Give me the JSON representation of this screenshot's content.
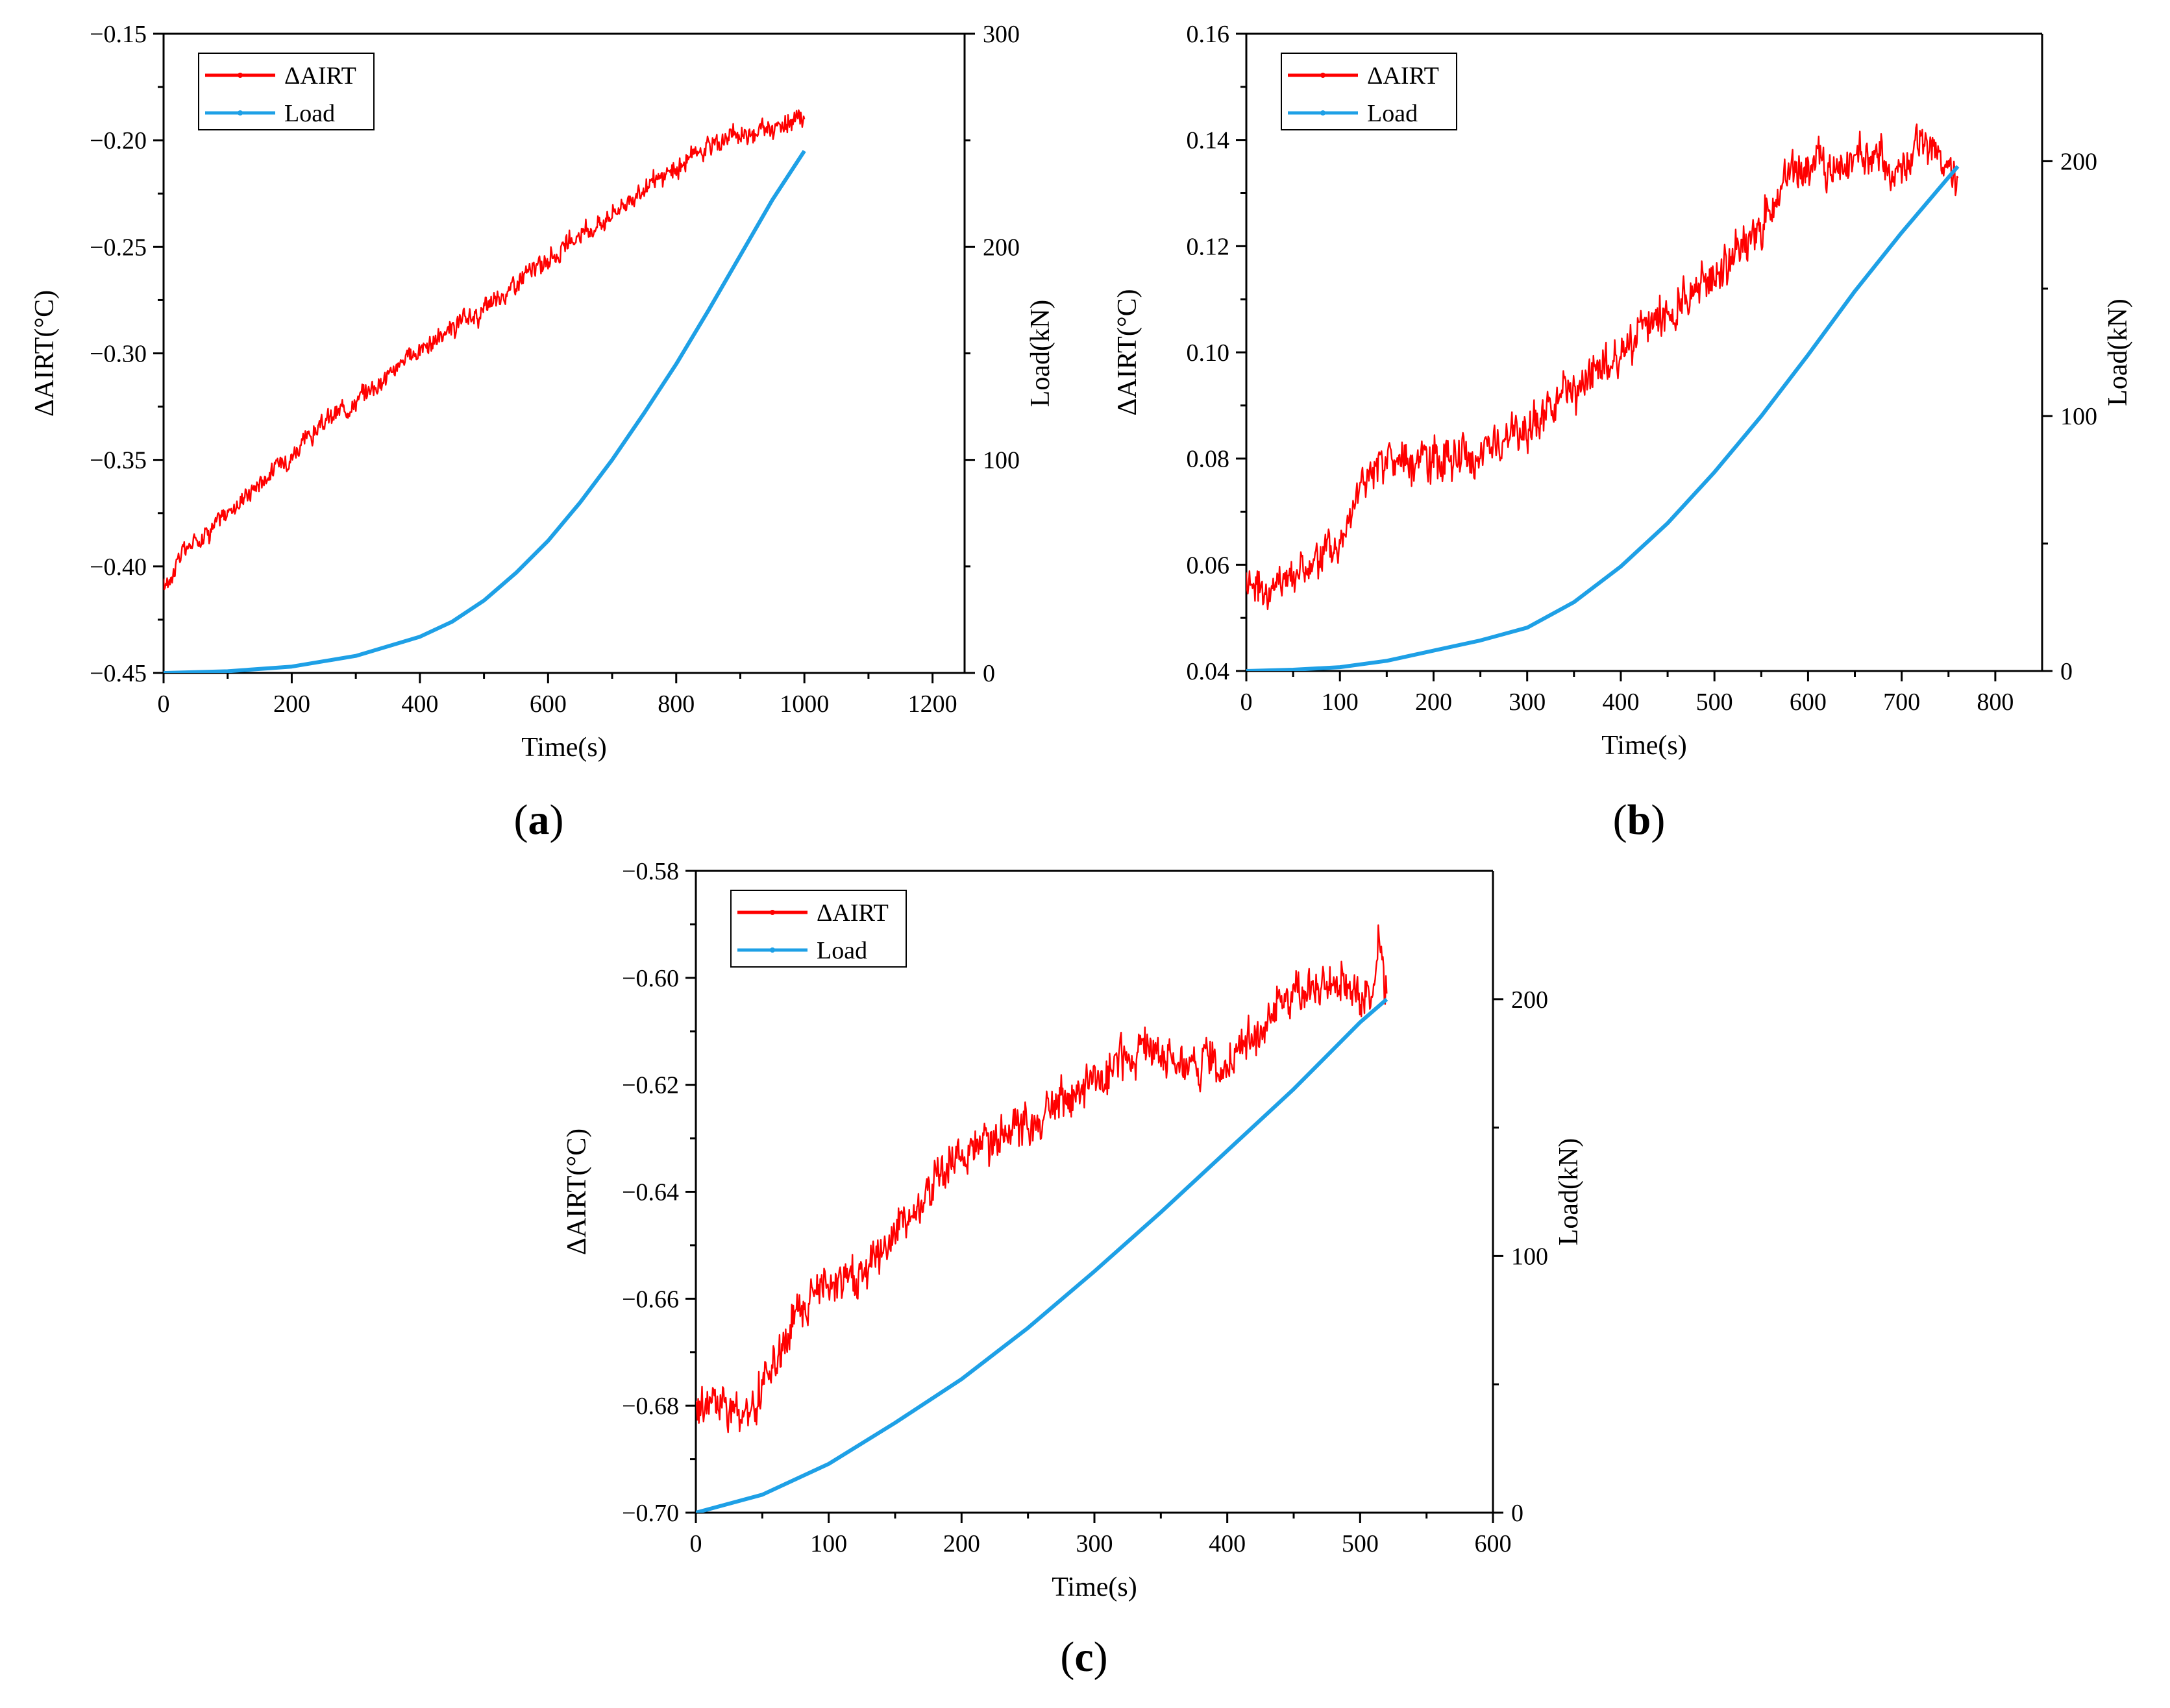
{
  "chart_data": [
    {
      "panel": "a",
      "type": "line",
      "xlabel": "Time(s)",
      "ylabel": "ΔAIRT(°C)",
      "y2label": "Load(kN)",
      "xlim": [
        0,
        1250
      ],
      "ylim": [
        -0.45,
        -0.15
      ],
      "y2lim": [
        0,
        300
      ],
      "xticks": [
        0,
        200,
        400,
        600,
        800,
        1000,
        1200
      ],
      "yticks": [
        -0.45,
        -0.4,
        -0.35,
        -0.3,
        -0.25,
        -0.2,
        -0.15
      ],
      "y2ticks": [
        0,
        100,
        200,
        300
      ],
      "legend_position": "top-left",
      "series": [
        {
          "name": "ΔAIRT",
          "axis": "left",
          "color": "#ff0000",
          "x": [
            0,
            10,
            25,
            50,
            100,
            150,
            200,
            250,
            300,
            350,
            400,
            450,
            500,
            550,
            600,
            650,
            700,
            750,
            800,
            850,
            900,
            950,
            1000
          ],
          "y": [
            -0.41,
            -0.405,
            -0.395,
            -0.388,
            -0.375,
            -0.36,
            -0.347,
            -0.333,
            -0.322,
            -0.31,
            -0.298,
            -0.289,
            -0.28,
            -0.267,
            -0.256,
            -0.245,
            -0.234,
            -0.223,
            -0.214,
            -0.202,
            -0.197,
            -0.194,
            -0.19
          ],
          "noise": 0.004
        },
        {
          "name": "Load",
          "axis": "right",
          "color": "#1ea0e6",
          "x": [
            0,
            100,
            200,
            300,
            400,
            450,
            500,
            550,
            600,
            650,
            700,
            750,
            800,
            850,
            900,
            950,
            1000
          ],
          "y": [
            0,
            0.8,
            3,
            8,
            17,
            24,
            34,
            47,
            62,
            80,
            100,
            122,
            145,
            170,
            196,
            222,
            245
          ]
        }
      ]
    },
    {
      "panel": "b",
      "type": "line",
      "xlabel": "Time(s)",
      "ylabel": "ΔAIRT(°C)",
      "y2label": "Load(kN)",
      "xlim": [
        0,
        850
      ],
      "ylim": [
        0.04,
        0.16
      ],
      "y2lim": [
        0,
        250
      ],
      "xticks": [
        0,
        100,
        200,
        300,
        400,
        500,
        600,
        700,
        800
      ],
      "yticks": [
        0.04,
        0.06,
        0.08,
        0.1,
        0.12,
        0.14,
        0.16
      ],
      "y2ticks": [
        0,
        100,
        200
      ],
      "legend_position": "top-left",
      "series": [
        {
          "name": "ΔAIRT",
          "axis": "left",
          "color": "#ff0000",
          "x": [
            0,
            25,
            50,
            75,
            100,
            125,
            150,
            200,
            250,
            300,
            350,
            400,
            450,
            500,
            550,
            575,
            600,
            650,
            700,
            720,
            750,
            760
          ],
          "y": [
            0.058,
            0.055,
            0.059,
            0.06,
            0.064,
            0.077,
            0.079,
            0.079,
            0.081,
            0.086,
            0.093,
            0.1,
            0.107,
            0.115,
            0.124,
            0.133,
            0.135,
            0.137,
            0.134,
            0.14,
            0.135,
            0.133
          ],
          "noise": 0.0035
        },
        {
          "name": "Load",
          "axis": "right",
          "color": "#1ea0e6",
          "x": [
            0,
            50,
            100,
            150,
            200,
            250,
            300,
            350,
            400,
            450,
            500,
            550,
            600,
            650,
            700,
            760
          ],
          "y": [
            0,
            0.5,
            1.5,
            4,
            8,
            12,
            17,
            27,
            41,
            58,
            78,
            100,
            124,
            149,
            172,
            198
          ]
        }
      ]
    },
    {
      "panel": "c",
      "type": "line",
      "xlabel": "Time(s)",
      "ylabel": "ΔAIRT(°C)",
      "y2label": "Load(kN)",
      "xlim": [
        0,
        600
      ],
      "ylim": [
        -0.7,
        -0.58
      ],
      "y2lim": [
        0,
        250
      ],
      "xticks": [
        0,
        100,
        200,
        300,
        400,
        500,
        600
      ],
      "yticks": [
        -0.7,
        -0.68,
        -0.66,
        -0.64,
        -0.62,
        -0.6,
        -0.58
      ],
      "y2ticks": [
        0,
        100,
        200
      ],
      "legend_position": "top-left",
      "series": [
        {
          "name": "ΔAIRT",
          "axis": "left",
          "color": "#ff0000",
          "x": [
            0,
            20,
            40,
            60,
            80,
            100,
            120,
            150,
            180,
            200,
            250,
            300,
            330,
            350,
            400,
            420,
            450,
            480,
            500,
            510,
            515,
            520
          ],
          "y": [
            -0.68,
            -0.679,
            -0.683,
            -0.672,
            -0.66,
            -0.658,
            -0.656,
            -0.648,
            -0.638,
            -0.632,
            -0.628,
            -0.62,
            -0.614,
            -0.615,
            -0.616,
            -0.61,
            -0.604,
            -0.6,
            -0.603,
            -0.604,
            -0.592,
            -0.603
          ],
          "noise": 0.0035
        },
        {
          "name": "Load",
          "axis": "right",
          "color": "#1ea0e6",
          "x": [
            0,
            50,
            100,
            150,
            200,
            250,
            300,
            350,
            400,
            450,
            500,
            520
          ],
          "y": [
            0,
            7,
            19,
            35,
            52,
            72,
            94,
            117,
            141,
            165,
            191,
            200
          ]
        }
      ]
    }
  ],
  "panel_labels": [
    "(a)",
    "(b)",
    "(c)"
  ]
}
